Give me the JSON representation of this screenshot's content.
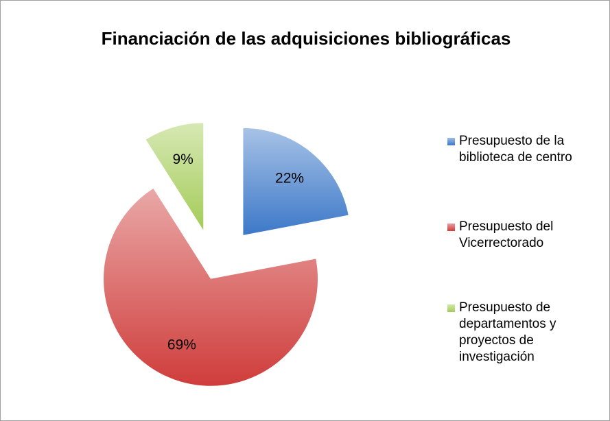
{
  "chart_data": {
    "type": "pie",
    "title": "Financiación de las adquisiciones bibliográficas",
    "categories": [
      "Presupuesto de la biblioteca de centro",
      "Presupuesto del Vicerrectorado",
      "Presupuesto de departamentos y proyectos de investigación"
    ],
    "values": [
      22,
      69,
      9
    ],
    "value_labels": [
      "22%",
      "69%",
      "9%"
    ],
    "colors": [
      "#3c78c8",
      "#cf3d3b",
      "#a4cc58"
    ],
    "legend": "right"
  }
}
